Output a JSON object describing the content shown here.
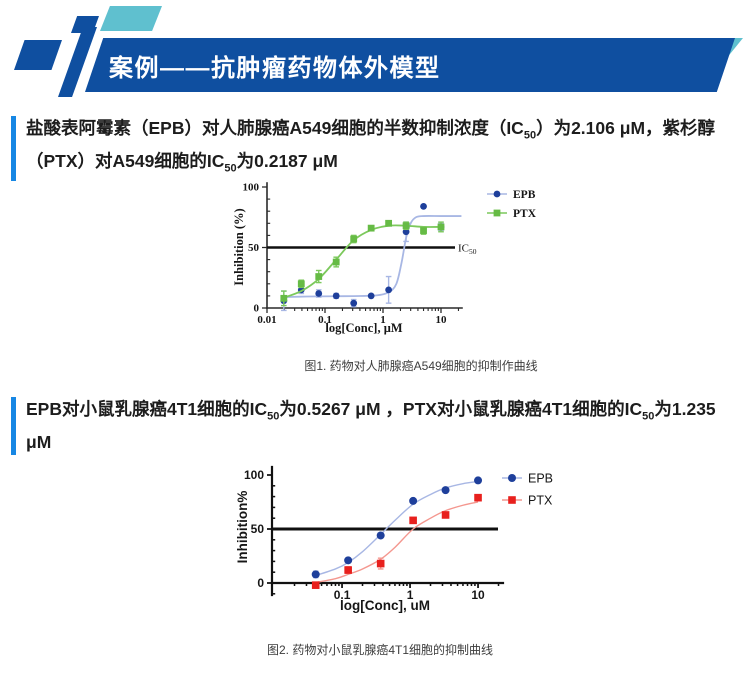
{
  "header": {
    "title": "案例——抗肿瘤药物体外模型"
  },
  "colors": {
    "banner_blue": "#0f4fa0",
    "teal_accent": "#5fc0cf",
    "paragraph_bar_blue": "#1787e4",
    "body_text": "#1d1d1d",
    "caption_text": "#3d3d3d",
    "banner_text": "#ffffff",
    "epb_blue": "#1e3f9b",
    "ptx_green": "#66bb45",
    "ptx_red": "#e8201d",
    "ic50_line": "#101010"
  },
  "paragraphs": [
    {
      "segments": [
        {
          "t": "盐酸表阿霉素（EPB）对人肺腺癌A549细胞的半数抑制浓度（IC"
        },
        {
          "sub": "50"
        },
        {
          "t": "）为2.106 μM，紫杉醇（PTX）对A549细胞的IC"
        },
        {
          "sub": "50"
        },
        {
          "t": "为0.2187 μM"
        }
      ]
    },
    {
      "segments": [
        {
          "t": "EPB对小鼠乳腺癌4T1细胞的IC"
        },
        {
          "sub": "50"
        },
        {
          "t": "为0.5267 μM ，PTX对小鼠乳腺癌4T1细胞的IC"
        },
        {
          "sub": "50"
        },
        {
          "t": "为1.235 μM"
        }
      ]
    }
  ],
  "figures": [
    {
      "caption": "图1. 药物对人肺腺癌A549细胞的抑制作曲线"
    },
    {
      "caption": "图2. 药物对小鼠乳腺癌4T1细胞的抑制曲线"
    }
  ],
  "chart_data": [
    {
      "type": "scatter",
      "title": "",
      "xlabel": "log[Conc], μM",
      "ylabel": "Inhibition (%)",
      "x_scale": "log",
      "x_ticks": [
        "0.01",
        "0.1",
        "1",
        "10"
      ],
      "ylim": [
        0,
        100
      ],
      "y_ticks": [
        0,
        50,
        100
      ],
      "y_minor_step": 10,
      "grid": false,
      "legend_position": "right-top",
      "reference_line": {
        "y": 50,
        "label_main": "IC",
        "label_sub": "50"
      },
      "series": [
        {
          "name": "EPB",
          "marker": "circle",
          "color": "#1e3f9b",
          "line_color": "#a8b7e4",
          "x": [
            0.0195,
            0.039,
            0.078,
            0.156,
            0.3125,
            0.625,
            1.25,
            2.5,
            5,
            10
          ],
          "y": [
            6,
            15,
            12,
            10,
            4,
            10,
            15,
            63,
            84,
            67
          ],
          "err": [
            8,
            3,
            3,
            2,
            3,
            0,
            11,
            8,
            0,
            3
          ],
          "curve": [
            [
              0.018,
              9
            ],
            [
              0.05,
              9.5
            ],
            [
              0.15,
              9.7
            ],
            [
              0.4,
              9.9
            ],
            [
              0.8,
              10.5
            ],
            [
              1.25,
              13
            ],
            [
              1.7,
              20
            ],
            [
              2.1,
              38
            ],
            [
              2.5,
              58
            ],
            [
              3,
              70
            ],
            [
              3.7,
              75
            ],
            [
              5,
              76
            ],
            [
              10,
              76
            ],
            [
              22.5,
              76
            ]
          ]
        },
        {
          "name": "PTX",
          "marker": "square",
          "color": "#66bb45",
          "line_color": "#7cc95c",
          "x": [
            0.0195,
            0.039,
            0.078,
            0.156,
            0.3125,
            0.625,
            1.25,
            2.5,
            5,
            10
          ],
          "y": [
            8,
            20,
            26,
            38,
            57,
            66,
            70,
            68,
            64,
            67
          ],
          "err": [
            6,
            3,
            5,
            4,
            3,
            2,
            2,
            3,
            3,
            4
          ],
          "curve": [
            [
              0.018,
              8
            ],
            [
              0.039,
              14
            ],
            [
              0.078,
              24
            ],
            [
              0.156,
              40
            ],
            [
              0.3125,
              56
            ],
            [
              0.625,
              64.5
            ],
            [
              1.25,
              68
            ],
            [
              2.5,
              68
            ],
            [
              5,
              67
            ],
            [
              10,
              67
            ]
          ]
        }
      ]
    },
    {
      "type": "scatter",
      "title": "",
      "xlabel": "log[Conc], uM",
      "ylabel": "Inhibition%",
      "x_scale": "log",
      "x_ticks": [
        "0.1",
        "1",
        "10"
      ],
      "ylim": [
        -10,
        100
      ],
      "y_ticks": [
        0,
        50,
        100
      ],
      "y_minor_step": 10,
      "grid": false,
      "legend_position": "right-top",
      "reference_line": {
        "y": 50
      },
      "series": [
        {
          "name": "EPB",
          "marker": "circle",
          "color": "#1e3f9b",
          "line_color": "#a8b7e4",
          "x": [
            0.041,
            0.123,
            0.37,
            1.11,
            3.33,
            10
          ],
          "y": [
            8,
            21,
            44,
            76,
            86,
            95
          ],
          "err": [
            3,
            2,
            0,
            0,
            0,
            0
          ],
          "curve": [
            [
              0.037,
              6
            ],
            [
              0.08,
              13
            ],
            [
              0.123,
              19
            ],
            [
              0.2,
              29
            ],
            [
              0.37,
              45
            ],
            [
              0.6,
              58
            ],
            [
              1.11,
              73
            ],
            [
              2,
              82
            ],
            [
              3.33,
              88
            ],
            [
              6,
              92
            ],
            [
              10,
              94
            ]
          ]
        },
        {
          "name": "PTX",
          "marker": "square",
          "color": "#e8201d",
          "line_color": "#f4978f",
          "x": [
            0.041,
            0.123,
            0.37,
            1.11,
            3.33,
            10
          ],
          "y": [
            -2,
            12,
            18,
            58,
            63,
            79
          ],
          "err": [
            2,
            3,
            5,
            0,
            0,
            0
          ],
          "curve": [
            [
              0.037,
              0
            ],
            [
              0.08,
              4
            ],
            [
              0.123,
              8
            ],
            [
              0.2,
              13
            ],
            [
              0.37,
              22
            ],
            [
              0.6,
              33
            ],
            [
              1.11,
              50
            ],
            [
              2,
              60
            ],
            [
              3.33,
              67
            ],
            [
              6,
              72
            ],
            [
              10,
              75
            ]
          ]
        }
      ]
    }
  ]
}
